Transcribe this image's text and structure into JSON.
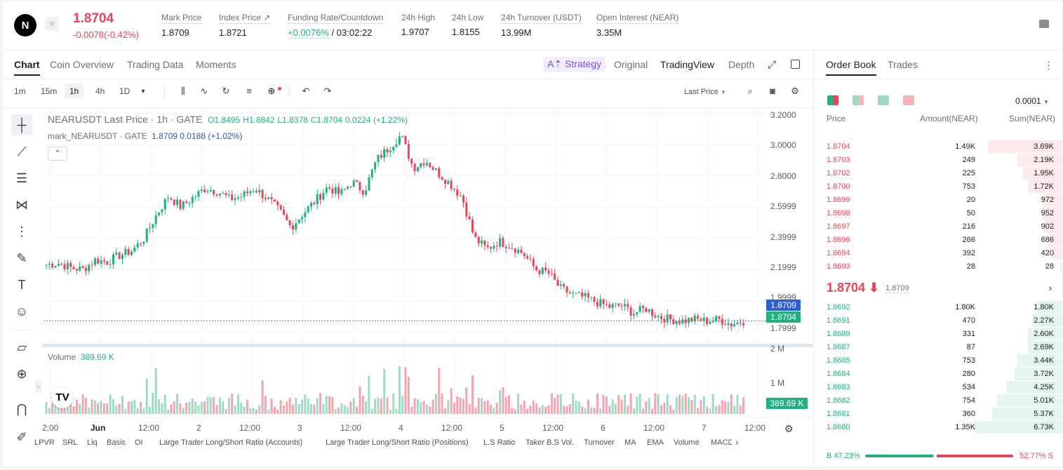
{
  "header": {
    "logo": "N",
    "last_price": "1.8704",
    "change": "-0.0078(-0.42%)",
    "stats": [
      {
        "label": "Mark Price",
        "value": "1.8709"
      },
      {
        "label": "Index Price ↗",
        "value": "1.8721"
      },
      {
        "label": "Funding Rate/Countdown",
        "rate": "+0.0076%",
        "countdown": "/ 03:02:22"
      },
      {
        "label": "24h High",
        "value": "1.9707"
      },
      {
        "label": "24h Low",
        "value": "1.8155"
      },
      {
        "label": "24h Turnover (USDT)",
        "value": "13.99M"
      },
      {
        "label": "Open Interest (NEAR)",
        "value": "3.35M"
      }
    ]
  },
  "chart_panel": {
    "tabs": [
      "Chart",
      "Coin Overview",
      "Trading Data",
      "Moments"
    ],
    "active_tab": "Chart",
    "strategy": "A⇡ Strategy",
    "view_tabs": [
      "Original",
      "TradingView",
      "Depth"
    ],
    "active_view": "TradingView",
    "timeframes": [
      "1m",
      "15m",
      "1h",
      "4h",
      "1D"
    ],
    "active_timeframe": "1h",
    "price_type": "Last Price",
    "legend_main": {
      "symbol": "NEARUSDT Last Price · 1h · GATE",
      "o": "O1.8495",
      "h": "H1.8842",
      "l": "L1.8378",
      "c": "C1.8704",
      "chg": "0.0224 (+1.22%)"
    },
    "legend_mark": {
      "label": "mark_NEARUSDT · GATE",
      "value": "1.8709 0.0188 (+1.02%)"
    },
    "volume_label": "Volume",
    "volume_value": "389.69 K",
    "y_axis": [
      "3.2000",
      "3.0000",
      "2.8000",
      "2.5999",
      "2.3999",
      "2.1999",
      "1.9999",
      "1.7999"
    ],
    "vol_axis": [
      "2 M",
      "1 M"
    ],
    "mark_badge": "1.8709",
    "last_badge": "1.8704",
    "vol_badge": "389.69 K",
    "x_axis": [
      "2:00",
      "Jun",
      "12:00",
      "2",
      "12:00",
      "3",
      "12:00",
      "4",
      "12:00",
      "5",
      "12:00",
      "6",
      "12:00",
      "7",
      "12:00"
    ],
    "indicators": [
      "LPVR",
      "SRL",
      "Liq",
      "Basis",
      "OI",
      "Large Trader Long/Short Ratio (Accounts)",
      "Large Trader Long/Short Ratio (Positions)",
      "L.S Ratio",
      "Taker B.S Vol.",
      "Turnover",
      "MA",
      "EMA",
      "Volume",
      "MACD"
    ],
    "left_tools": [
      "crosshair-icon",
      "trend-line-icon",
      "fib-icon",
      "pattern-icon",
      "measure-lines-icon",
      "brush-icon",
      "text-icon",
      "emoji-icon",
      "ruler-icon",
      "zoom-in-icon",
      "magnet-icon",
      "lock-draw-icon"
    ]
  },
  "chart_data": {
    "type": "candlestick",
    "symbol": "NEARUSDT",
    "interval": "1h",
    "x_range": [
      "May 31 ~22:00",
      "Jun 7 12:00"
    ],
    "ylim": [
      1.76,
      3.22
    ],
    "close_path": [
      2.23,
      2.24,
      2.21,
      2.2,
      2.26,
      2.25,
      2.29,
      2.32,
      2.4,
      2.55,
      2.67,
      2.6,
      2.66,
      2.72,
      2.7,
      2.65,
      2.67,
      2.72,
      2.66,
      2.58,
      2.47,
      2.56,
      2.64,
      2.73,
      2.68,
      2.76,
      2.7,
      2.9,
      2.98,
      3.06,
      2.85,
      2.9,
      2.82,
      2.75,
      2.66,
      2.4,
      2.33,
      2.38,
      2.35,
      2.3,
      2.2,
      2.18,
      2.08,
      2.04,
      2.02,
      1.99,
      1.96,
      1.97,
      1.92,
      1.95,
      1.9,
      1.88,
      1.87,
      1.88,
      1.87,
      1.88,
      1.85,
      1.87
    ],
    "volume_ylim": [
      0,
      2500000
    ],
    "last_volume": 389690
  },
  "order_book": {
    "tabs": [
      "Order Book",
      "Trades"
    ],
    "active_tab": "Order Book",
    "precision": "0.0001",
    "columns": [
      "Price",
      "Amount(NEAR)",
      "Sum(NEAR)"
    ],
    "asks": [
      {
        "price": "1.8704",
        "amount": "1.49K",
        "sum": "3.69K",
        "depth": 0.5
      },
      {
        "price": "1.8703",
        "amount": "249",
        "sum": "2.19K",
        "depth": 0.3
      },
      {
        "price": "1.8702",
        "amount": "225",
        "sum": "1.95K",
        "depth": 0.26
      },
      {
        "price": "1.8700",
        "amount": "753",
        "sum": "1.72K",
        "depth": 0.23
      },
      {
        "price": "1.8699",
        "amount": "20",
        "sum": "972",
        "depth": 0.13
      },
      {
        "price": "1.8698",
        "amount": "50",
        "sum": "952",
        "depth": 0.13
      },
      {
        "price": "1.8697",
        "amount": "216",
        "sum": "902",
        "depth": 0.12
      },
      {
        "price": "1.8696",
        "amount": "266",
        "sum": "686",
        "depth": 0.09
      },
      {
        "price": "1.8694",
        "amount": "392",
        "sum": "420",
        "depth": 0.06
      },
      {
        "price": "1.8693",
        "amount": "28",
        "sum": "28",
        "depth": 0.01
      }
    ],
    "mid_price": "1.8704 ⬇",
    "mark_price": "1.8709",
    "bids": [
      {
        "price": "1.8692",
        "amount": "1.80K",
        "sum": "1.80K",
        "depth": 0.16
      },
      {
        "price": "1.8691",
        "amount": "470",
        "sum": "2.27K",
        "depth": 0.2
      },
      {
        "price": "1.8689",
        "amount": "331",
        "sum": "2.60K",
        "depth": 0.23
      },
      {
        "price": "1.8687",
        "amount": "87",
        "sum": "2.69K",
        "depth": 0.23
      },
      {
        "price": "1.8685",
        "amount": "753",
        "sum": "3.44K",
        "depth": 0.3
      },
      {
        "price": "1.8684",
        "amount": "280",
        "sum": "3.72K",
        "depth": 0.32
      },
      {
        "price": "1.8683",
        "amount": "534",
        "sum": "4.25K",
        "depth": 0.37
      },
      {
        "price": "1.8682",
        "amount": "754",
        "sum": "5.01K",
        "depth": 0.44
      },
      {
        "price": "1.8681",
        "amount": "360",
        "sum": "5.37K",
        "depth": 0.47
      },
      {
        "price": "1.8680",
        "amount": "1.35K",
        "sum": "6.73K",
        "depth": 0.59
      }
    ],
    "buy_ratio": "B 47.23%",
    "sell_ratio": "52.77% S",
    "buy_pct": 0.4723,
    "colors": {
      "red": "#e8455a",
      "green": "#22b07d",
      "ask_bg": "#fde9eb",
      "bid_bg": "#e3f5ec"
    }
  }
}
